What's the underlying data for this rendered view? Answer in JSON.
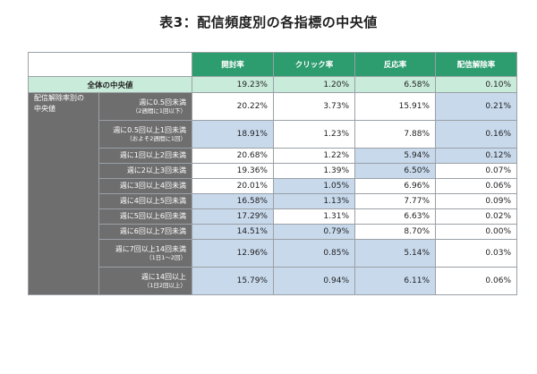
{
  "title": "表3：配信頻度別の各指標の中央値",
  "columns": [
    "開封率",
    "クリック率",
    "反応率",
    "配信解除率"
  ],
  "overall": {
    "label": "全体の中央値",
    "values": [
      "19.23%",
      "1.20%",
      "6.58%",
      "0.10%"
    ]
  },
  "group_label_line1": "配信解除率別の",
  "group_label_line2": "中央値",
  "rows": [
    {
      "label": "週に0.5回未満",
      "sub": "（2週間に1回以下）",
      "values": [
        "20.22%",
        "3.73%",
        "15.91%",
        "0.21%"
      ],
      "highlight": [
        false,
        false,
        false,
        true
      ]
    },
    {
      "label": "週に0.5回以上1回未満",
      "sub": "（およそ2週間に1回）",
      "values": [
        "18.91%",
        "1.23%",
        "7.88%",
        "0.16%"
      ],
      "highlight": [
        true,
        false,
        false,
        true
      ]
    },
    {
      "label": "週に1回以上2回未満",
      "sub": "",
      "values": [
        "20.68%",
        "1.22%",
        "5.94%",
        "0.12%"
      ],
      "highlight": [
        false,
        false,
        true,
        true
      ]
    },
    {
      "label": "週に2以上3回未満",
      "sub": "",
      "values": [
        "19.36%",
        "1.39%",
        "6.50%",
        "0.07%"
      ],
      "highlight": [
        false,
        false,
        true,
        false
      ]
    },
    {
      "label": "週に3回以上4回未満",
      "sub": "",
      "values": [
        "20.01%",
        "1.05%",
        "6.96%",
        "0.06%"
      ],
      "highlight": [
        false,
        true,
        false,
        false
      ]
    },
    {
      "label": "週に4回以上5回未満",
      "sub": "",
      "values": [
        "16.58%",
        "1.13%",
        "7.77%",
        "0.09%"
      ],
      "highlight": [
        true,
        true,
        false,
        false
      ]
    },
    {
      "label": "週に5回以上6回未満",
      "sub": "",
      "values": [
        "17.29%",
        "1.31%",
        "6.63%",
        "0.02%"
      ],
      "highlight": [
        true,
        false,
        false,
        false
      ]
    },
    {
      "label": "週に6回以上7回未満",
      "sub": "",
      "values": [
        "14.51%",
        "0.79%",
        "8.70%",
        "0.00%"
      ],
      "highlight": [
        true,
        true,
        false,
        false
      ]
    },
    {
      "label": "週に7回以上14回未満",
      "sub": "（1日1〜2回）",
      "values": [
        "12.96%",
        "0.85%",
        "5.14%",
        "0.03%"
      ],
      "highlight": [
        true,
        true,
        true,
        false
      ]
    },
    {
      "label": "週に14回以上",
      "sub": "（1日2回以上）",
      "values": [
        "15.79%",
        "0.94%",
        "6.11%",
        "0.06%"
      ],
      "highlight": [
        true,
        true,
        true,
        false
      ]
    }
  ],
  "colors": {
    "header_green": "#2d9c6e",
    "overall_row_green": "#c9ebda",
    "label_gray": "#6e6e6e",
    "highlight_blue": "#c8d9ec"
  }
}
